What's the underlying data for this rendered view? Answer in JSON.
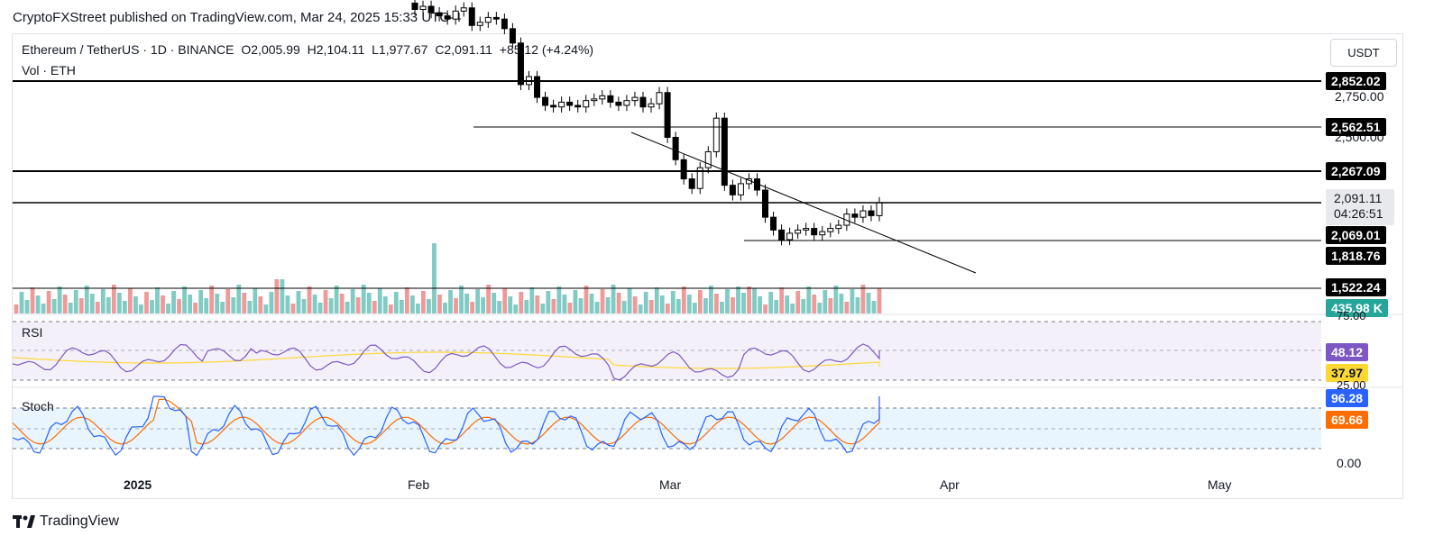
{
  "header": {
    "published": "CryptoFXStreet published on TradingView.com, Mar 24, 2025 15:33 UTC-4"
  },
  "legend": {
    "symbol": "Ethereum / TetherUS · 1D · BINANCE",
    "open": "O2,005.99",
    "high": "H2,104.11",
    "low": "L1,977.67",
    "close": "C2,091.11",
    "change": "+85.12 (+4.24%)",
    "volume_label": "Vol · ETH"
  },
  "currency": "USDT",
  "price_levels": [
    "2,852.02",
    "2,562.51",
    "2,267.09",
    "2,069.01",
    "1,818.76",
    "1,522.24"
  ],
  "axis_ticks": [
    "2,750.00",
    "2,500.00"
  ],
  "last_price": {
    "value": "2,091.11",
    "countdown": "04:26:51"
  },
  "volume_tag": "435.98 K",
  "rsi": {
    "title": "RSI",
    "upper": "75.00",
    "lower": "25.00",
    "value": "48.12",
    "ma_value": "37.97",
    "colors": {
      "rsi": "#7e57c2",
      "ma": "#fdd835"
    }
  },
  "stoch": {
    "title": "Stoch",
    "k_value": "96.28",
    "d_value": "69.66",
    "zero": "0.00",
    "colors": {
      "k": "#2962ff",
      "d": "#ff6d00"
    }
  },
  "x_axis": [
    "2025",
    "Feb",
    "Mar",
    "Apr",
    "May"
  ],
  "footer": {
    "brand": "TradingView"
  },
  "chart_data": {
    "type": "candlestick",
    "title": "Ethereum / TetherUS · 1D · BINANCE",
    "y_unit": "USDT",
    "horizontal_levels": [
      2852.02,
      2562.51,
      2267.09,
      2069.01,
      1818.76,
      1522.24
    ],
    "candles_close": [
      3300,
      3320,
      3280,
      3260,
      3240,
      3290,
      3310,
      3200,
      3220,
      3250,
      3240,
      3180,
      3090,
      2830,
      2880,
      2750,
      2700,
      2690,
      2720,
      2700,
      2690,
      2730,
      2740,
      2760,
      2720,
      2700,
      2730,
      2750,
      2690,
      2710,
      2780,
      2500,
      2360,
      2240,
      2180,
      2310,
      2410,
      2620,
      2200,
      2140,
      2210,
      2240,
      2170,
      2000,
      1920,
      1860,
      1900,
      1920,
      1930,
      1890,
      1910,
      1930,
      1950,
      2020,
      2000,
      2040,
      2010,
      2091.11
    ],
    "volume_last": 435980,
    "rsi_last": 48.12,
    "rsi_ma_last": 37.97,
    "stoch_k_last": 96.28,
    "stoch_d_last": 69.66
  }
}
